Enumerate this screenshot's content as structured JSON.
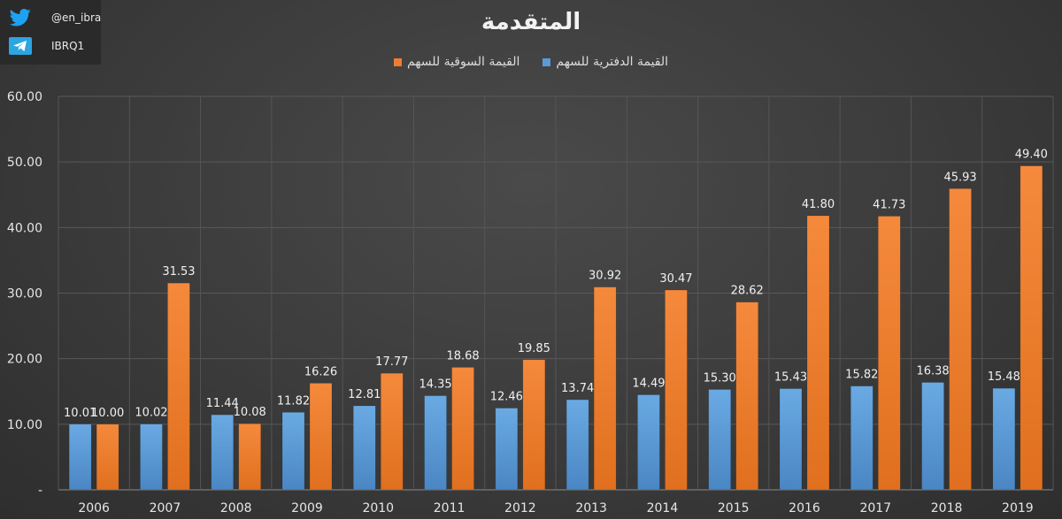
{
  "social": {
    "twitter_handle": "@en_ibra",
    "telegram_handle": "IBRQ1",
    "twitter_icon": "twitter-bird-icon",
    "telegram_icon": "telegram-plane-icon"
  },
  "colors": {
    "book_value": "#5b9bd5",
    "market_value": "#ed7d31",
    "twitter_blue": "#1da1f2",
    "telegram_blue": "#2ca5e0"
  },
  "chart_data": {
    "type": "bar",
    "title": "المتقدمة",
    "categories": [
      "2006",
      "2007",
      "2008",
      "2009",
      "2010",
      "2011",
      "2012",
      "2013",
      "2014",
      "2015",
      "2016",
      "2017",
      "2018",
      "2019"
    ],
    "series": [
      {
        "name": "القيمة الدفترية للسهم",
        "values": [
          10.01,
          10.02,
          11.44,
          11.82,
          12.81,
          14.35,
          12.46,
          13.74,
          14.49,
          15.3,
          15.43,
          15.82,
          16.38,
          15.48
        ],
        "labels": [
          "10.01",
          "10.02",
          "11.44",
          "11.82",
          "12.81",
          "14.35",
          "12.46",
          "13.74",
          "14.49",
          "15.30",
          "15.43",
          "15.82",
          "16.38",
          "15.48"
        ]
      },
      {
        "name": "القيمة السوقية للسهم",
        "values": [
          10.0,
          31.53,
          10.08,
          16.26,
          17.77,
          18.68,
          19.85,
          30.92,
          30.47,
          28.62,
          41.8,
          41.73,
          45.93,
          49.4
        ],
        "labels": [
          "10.00",
          "31.53",
          "10.08",
          "16.26",
          "17.77",
          "18.68",
          "19.85",
          "30.92",
          "30.47",
          "28.62",
          "41.80",
          "41.73",
          "45.93",
          "49.40"
        ]
      }
    ],
    "ylim": [
      0,
      60
    ],
    "yticks": [
      "-",
      "10.00",
      "20.00",
      "30.00",
      "40.00",
      "50.00",
      "60.00"
    ],
    "grid": true,
    "legend_position": "top"
  }
}
